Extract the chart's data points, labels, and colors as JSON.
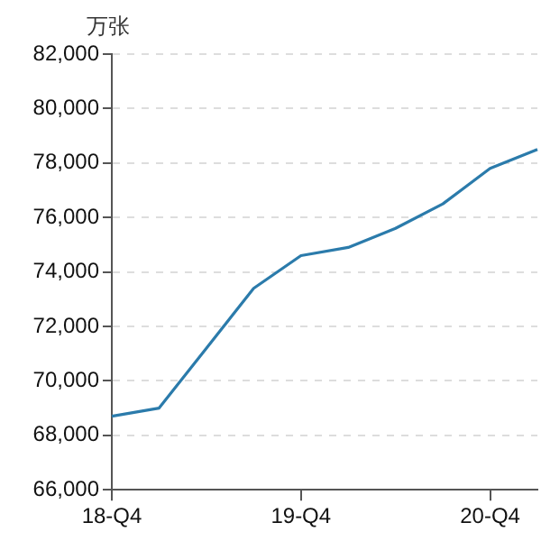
{
  "chart_data": {
    "type": "line",
    "ylabel": "万张",
    "categories": [
      "18-Q4",
      null,
      null,
      null,
      "19-Q4",
      null,
      null,
      null,
      "20-Q4",
      null
    ],
    "values": [
      68700,
      69000,
      71200,
      73400,
      74600,
      74900,
      75600,
      76500,
      77800,
      78500
    ],
    "color": "#2b7bab",
    "marker": "none",
    "line_style": "solid",
    "ylim": [
      66000,
      82000
    ],
    "yticks": [
      {
        "value": 66000,
        "label": "66,000"
      },
      {
        "value": 68000,
        "label": "68,000"
      },
      {
        "value": 70000,
        "label": "70,000"
      },
      {
        "value": 72000,
        "label": "72,000"
      },
      {
        "value": 74000,
        "label": "74,000"
      },
      {
        "value": 76000,
        "label": "76,000"
      },
      {
        "value": 78000,
        "label": "78,000"
      },
      {
        "value": 80000,
        "label": "80,000"
      },
      {
        "value": 82000,
        "label": "82,000"
      }
    ],
    "grid": "y"
  }
}
